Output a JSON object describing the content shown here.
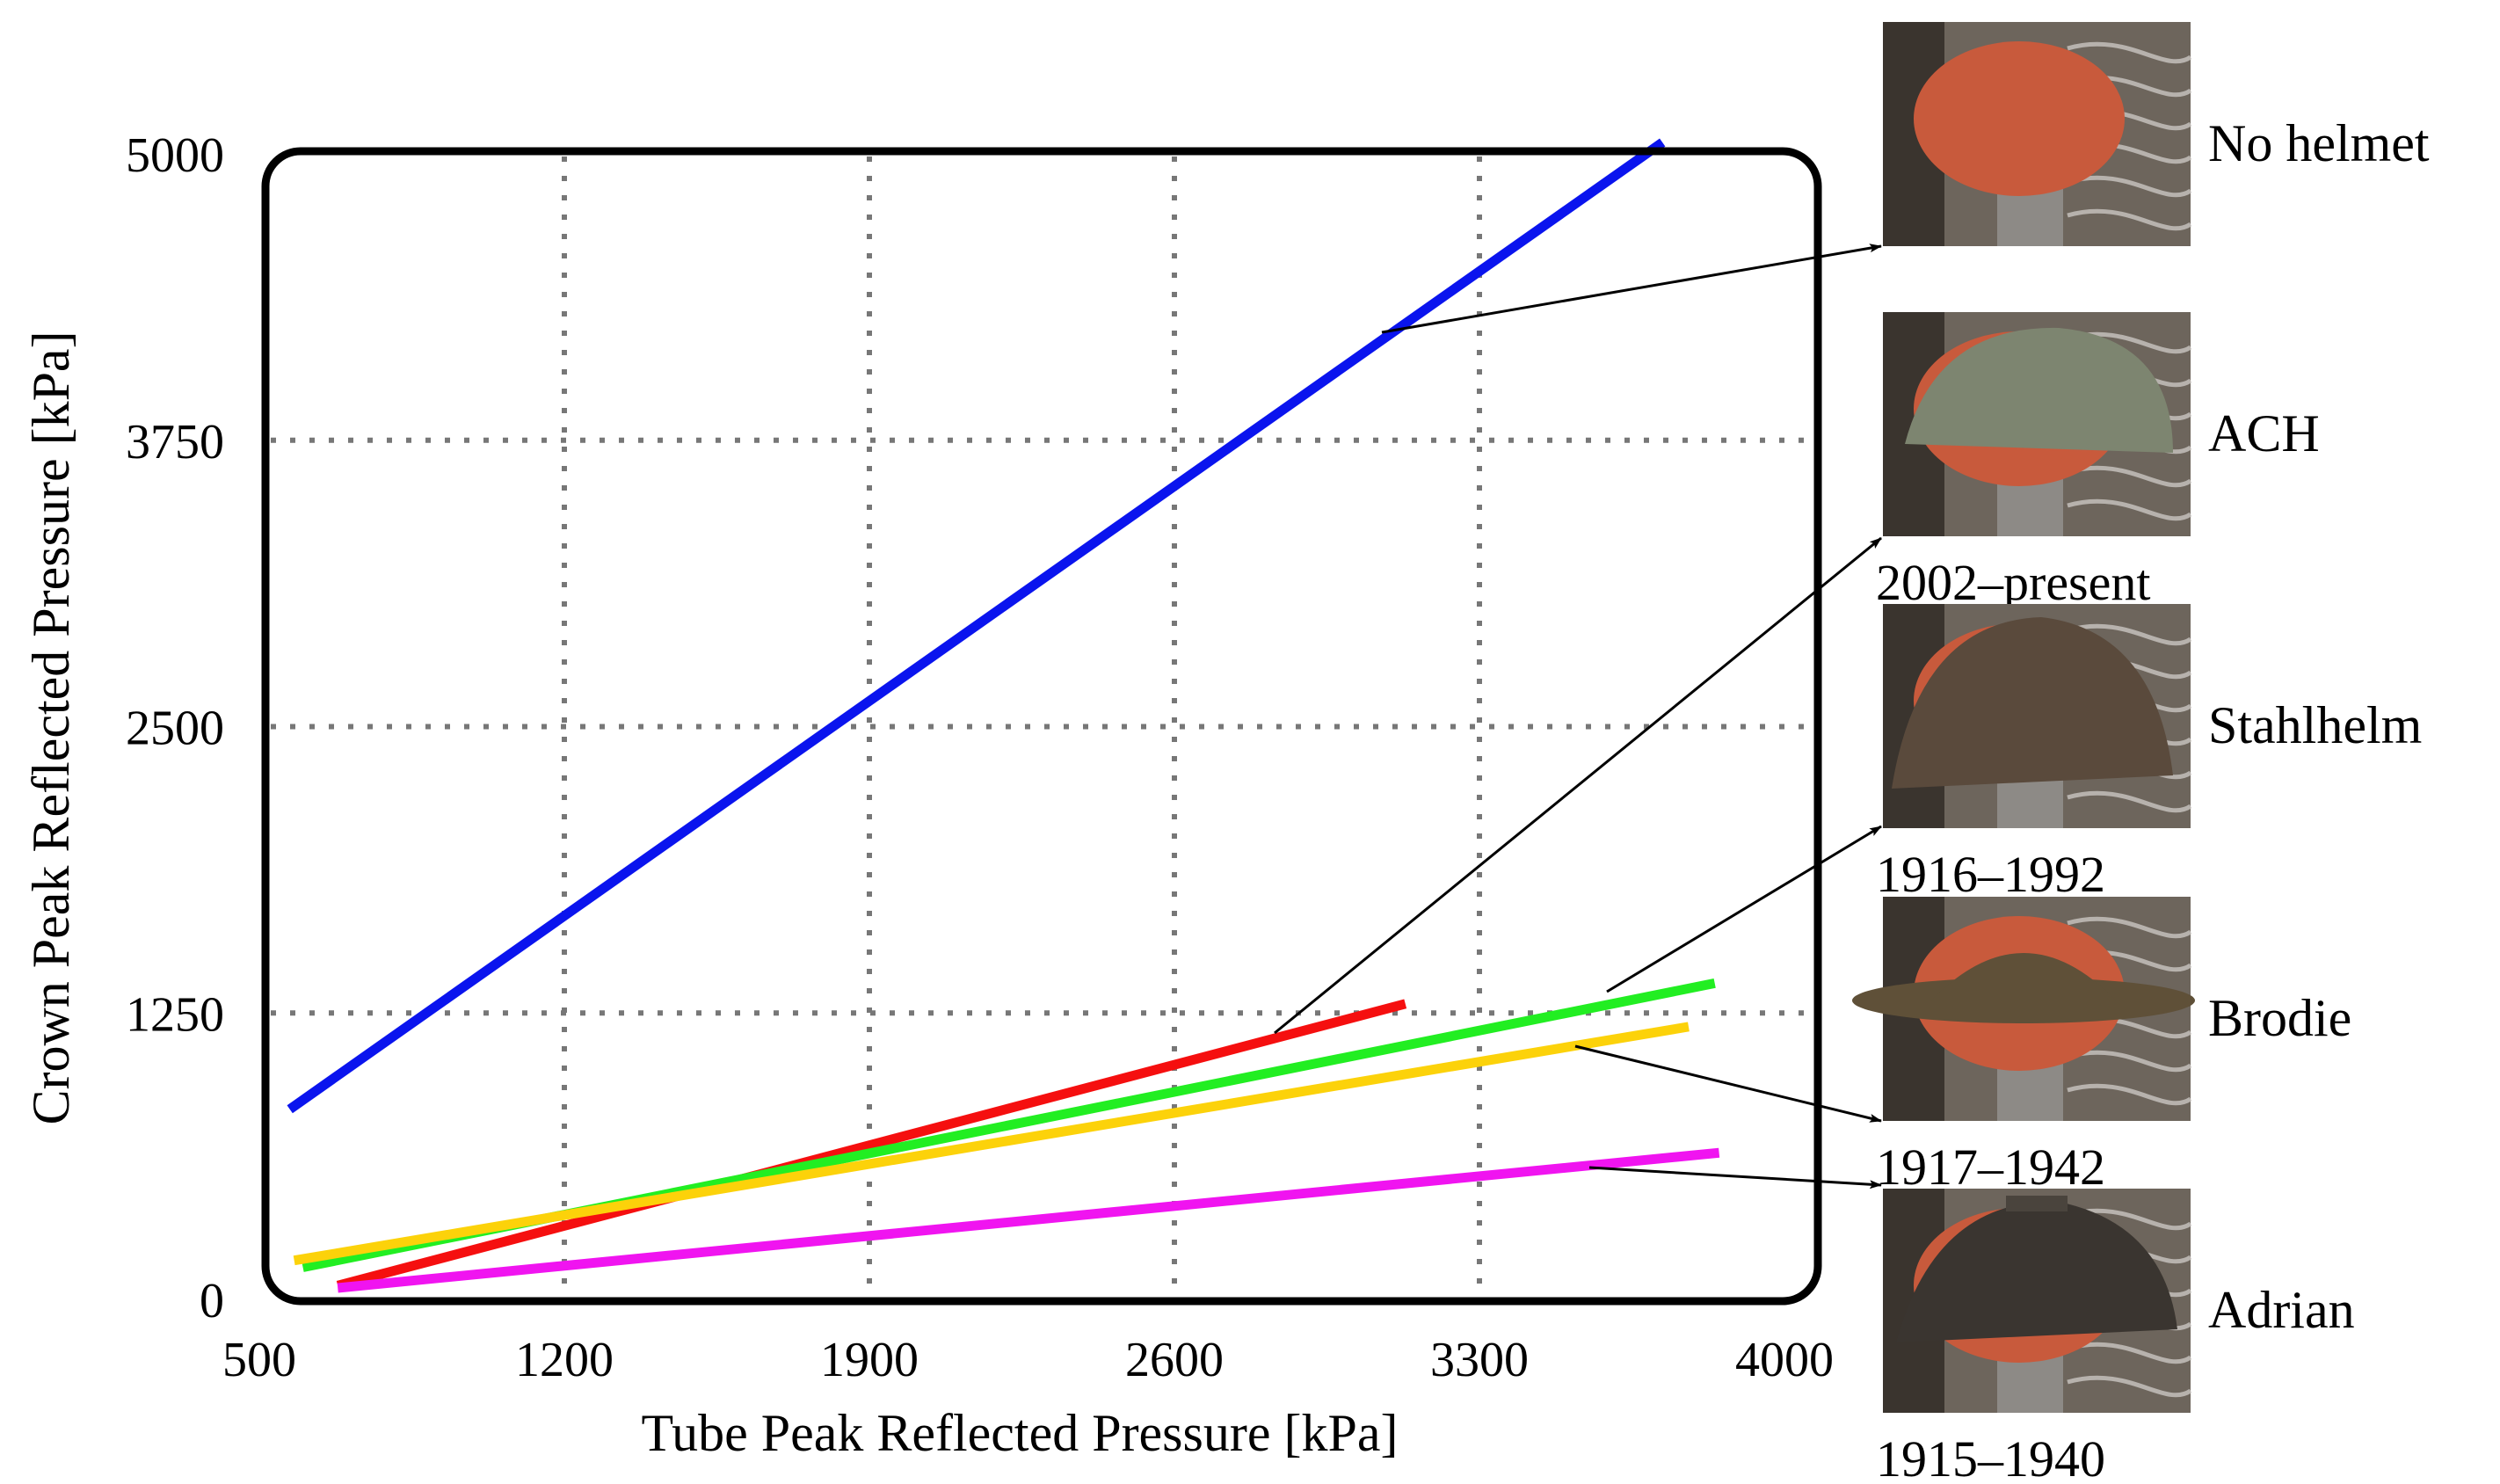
{
  "chart_data": {
    "type": "line",
    "xlabel": "Tube Peak Reflected Pressure [kPa]",
    "ylabel": "Crown Peak Reflected Pressure [kPa]",
    "xlim": [
      500,
      4000
    ],
    "ylim": [
      0,
      5000
    ],
    "x_ticks": [
      500,
      1200,
      1900,
      2600,
      3300,
      4000
    ],
    "y_ticks": [
      0,
      1250,
      2500,
      3750,
      5000
    ],
    "grid": true,
    "series": [
      {
        "name": "No helmet",
        "years": "",
        "color": "#0a14ee",
        "x": [
          570,
          3720
        ],
        "y": [
          830,
          5050
        ]
      },
      {
        "name": "ACH",
        "years": "2002–present",
        "color": "#f50f0f",
        "x": [
          680,
          3130
        ],
        "y": [
          60,
          1290
        ]
      },
      {
        "name": "Stahlhelm",
        "years": "1916–1992",
        "color": "#22ee22",
        "x": [
          600,
          3840
        ],
        "y": [
          140,
          1380
        ]
      },
      {
        "name": "Brodie",
        "years": "1917–1942",
        "color": "#fcd20a",
        "x": [
          580,
          3780
        ],
        "y": [
          170,
          1190
        ]
      },
      {
        "name": "Adrian",
        "years": "1915–1940",
        "color": "#f014f0",
        "x": [
          680,
          3850
        ],
        "y": [
          50,
          640
        ]
      }
    ]
  },
  "photos": [
    {
      "name": "No helmet",
      "years": "",
      "helmet_color": "",
      "skin_color": "#c85a3c"
    },
    {
      "name": "ACH",
      "years": "2002–present",
      "helmet_color": "#7d8570",
      "skin_color": "#c85a3c"
    },
    {
      "name": "Stahlhelm",
      "years": "1916–1992",
      "helmet_color": "#5a4a3c",
      "skin_color": "#c85a3c"
    },
    {
      "name": "Brodie",
      "years": "1917–1942",
      "helmet_color": "#5f5038",
      "skin_color": "#c85a3c"
    },
    {
      "name": "Adrian",
      "years": "1915–1940",
      "helmet_color": "#3a3530",
      "skin_color": "#c85a3c"
    }
  ]
}
